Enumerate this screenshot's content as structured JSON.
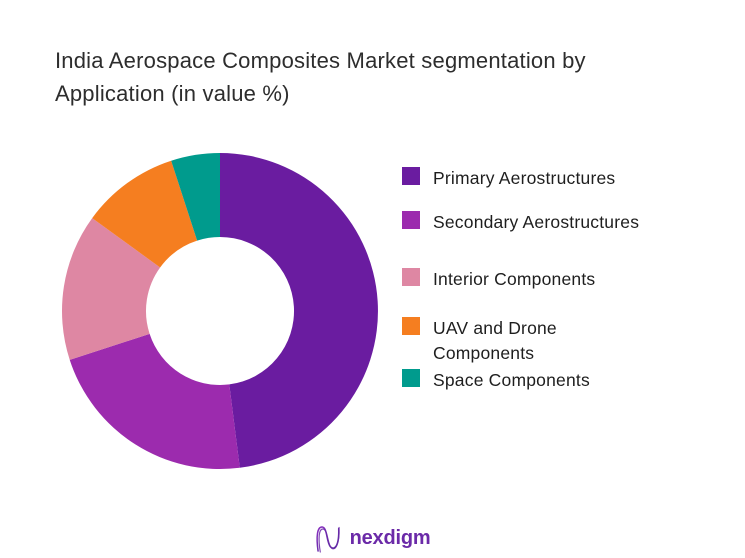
{
  "title": "India Aerospace Composites Market segmentation by Application (in value %)",
  "chart_data": {
    "type": "pie",
    "subtype": "donut",
    "title": "India Aerospace Composites Market segmentation by Application (in value %)",
    "unit": "percent of value",
    "categories": [
      "Primary Aerostructures",
      "Secondary Aerostructures",
      "Interior Components",
      "UAV and Drone Components",
      "Space Components"
    ],
    "values": [
      48,
      22,
      15,
      10,
      5
    ],
    "colors": [
      "#6a1ca0",
      "#9c2bae",
      "#de87a3",
      "#f57e20",
      "#009b8d"
    ],
    "start_angle_deg": 0,
    "direction": "clockwise",
    "inner_radius_ratio": 0.47,
    "legend_position": "right",
    "data_labels_shown": false
  },
  "footer": {
    "brand": "nexdigm",
    "logo_icon": "nexdigm-n-wave-icon"
  }
}
